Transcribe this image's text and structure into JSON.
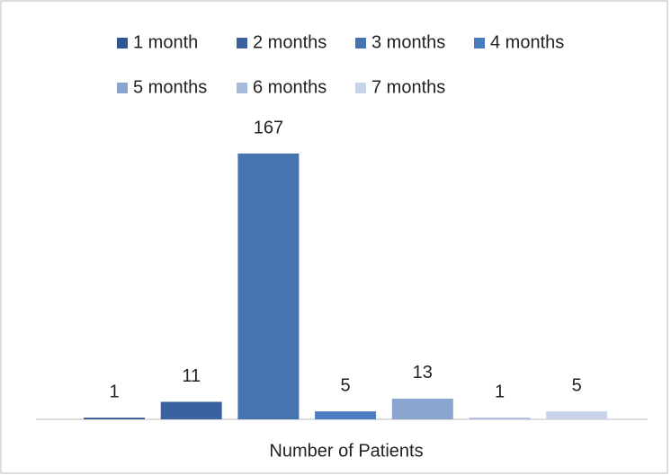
{
  "chart_data": {
    "type": "bar",
    "x_label": "Number of Patients",
    "series": [
      {
        "name": "1 month",
        "color": "#2f5590",
        "values": [
          1
        ]
      },
      {
        "name": "2 months",
        "color": "#3a62a0",
        "values": [
          11
        ]
      },
      {
        "name": "3 months",
        "color": "#4674b0",
        "values": [
          167
        ]
      },
      {
        "name": "4 months",
        "color": "#4b7cc0",
        "values": [
          5
        ]
      },
      {
        "name": "5 months",
        "color": "#8aa6d0",
        "values": [
          13
        ]
      },
      {
        "name": "6 months",
        "color": "#a9bbdc",
        "values": [
          1
        ]
      },
      {
        "name": "7 months",
        "color": "#c7d3e8",
        "values": [
          5
        ]
      }
    ]
  }
}
